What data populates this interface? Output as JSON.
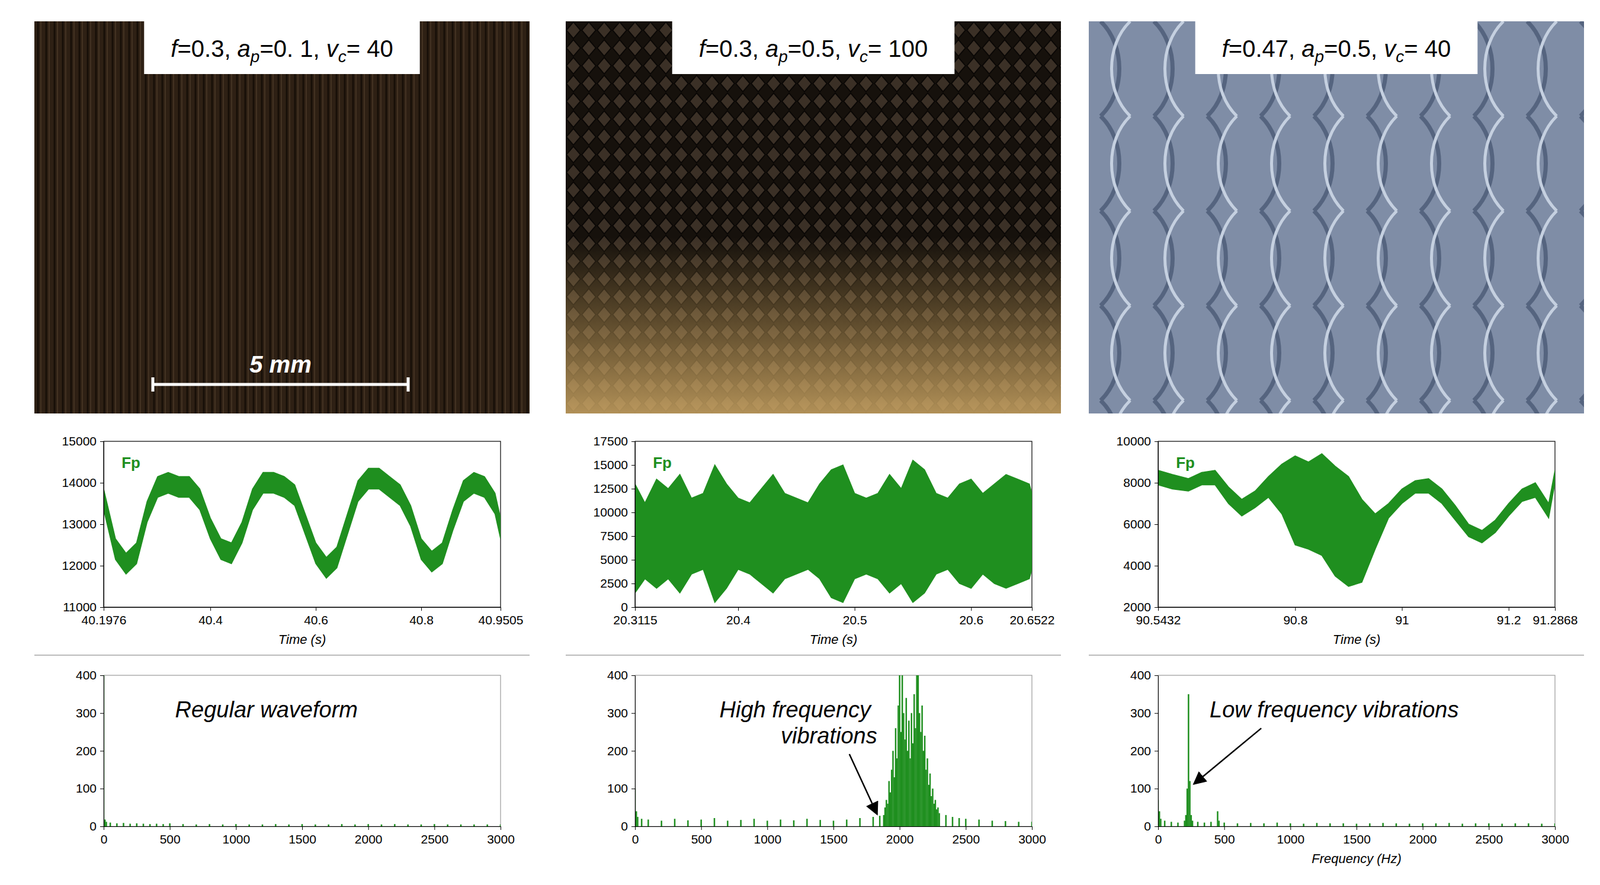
{
  "photos": [
    {
      "title": "f=0.3, ap=0. 1, vc= 40"
    },
    {
      "title": "f=0.3, ap=0.5, vc= 100"
    },
    {
      "title": "f=0.47, ap=0.5, vc= 40"
    }
  ],
  "scale_bar": "5 mm",
  "chart_data": [
    {
      "type": "area",
      "xlabel": "Time (s)",
      "x": [
        40.1976,
        40.22,
        40.24,
        40.26,
        40.28,
        40.3,
        40.32,
        40.34,
        40.36,
        40.38,
        40.4,
        40.42,
        40.44,
        40.46,
        40.48,
        40.5,
        40.52,
        40.54,
        40.56,
        40.58,
        40.6,
        40.62,
        40.64,
        40.66,
        40.68,
        40.7,
        40.72,
        40.74,
        40.76,
        40.78,
        40.8,
        40.82,
        40.84,
        40.86,
        40.88,
        40.9,
        40.92,
        40.94,
        40.9505
      ],
      "xlim": [
        40.1976,
        40.9505
      ],
      "xticks": [
        40.1976,
        40.4,
        40.6,
        40.8,
        40.9505
      ],
      "ylim": [
        11000,
        15000
      ],
      "yticks": [
        11000,
        12000,
        13000,
        14000,
        15000
      ],
      "legend": "top-left",
      "series": [
        {
          "name": "Fp",
          "color": "#1f8f1f",
          "low": [
            13350,
            12150,
            11800,
            12050,
            13050,
            13650,
            13750,
            13650,
            13650,
            13350,
            12650,
            12150,
            12050,
            12550,
            13350,
            13750,
            13750,
            13650,
            13450,
            12750,
            12050,
            11700,
            11950,
            12750,
            13550,
            13850,
            13850,
            13650,
            13450,
            12950,
            12150,
            11850,
            12050,
            12850,
            13550,
            13750,
            13650,
            13250,
            12650
          ],
          "high": [
            13850,
            12650,
            12300,
            12550,
            13550,
            14150,
            14250,
            14150,
            14150,
            13850,
            13150,
            12650,
            12550,
            13050,
            13850,
            14250,
            14250,
            14150,
            13950,
            13250,
            12550,
            12200,
            12450,
            13250,
            14050,
            14350,
            14350,
            14150,
            13950,
            13450,
            12650,
            12350,
            12550,
            13350,
            14050,
            14250,
            14150,
            13750,
            13150
          ]
        }
      ]
    },
    {
      "type": "area",
      "xlabel": "Time (s)",
      "x": [
        20.3115,
        20.32,
        20.33,
        20.34,
        20.35,
        20.36,
        20.37,
        20.38,
        20.39,
        20.4,
        20.41,
        20.42,
        20.43,
        20.44,
        20.45,
        20.46,
        20.47,
        20.48,
        20.49,
        20.5,
        20.51,
        20.52,
        20.53,
        20.54,
        20.55,
        20.56,
        20.57,
        20.58,
        20.59,
        20.6,
        20.61,
        20.62,
        20.63,
        20.64,
        20.65,
        20.6522
      ],
      "xlim": [
        20.3115,
        20.6522
      ],
      "xticks": [
        20.3115,
        20.4,
        20.5,
        20.6,
        20.6522
      ],
      "ylim": [
        0,
        17500
      ],
      "yticks": [
        0,
        2500,
        5000,
        7500,
        10000,
        12500,
        15000,
        17500
      ],
      "legend": "top-left",
      "series": [
        {
          "name": "Fp",
          "color": "#1f8f1f",
          "low": [
            1500,
            3000,
            2000,
            3000,
            1500,
            3500,
            4000,
            500,
            2000,
            4000,
            3500,
            2500,
            1500,
            3000,
            3500,
            4000,
            3000,
            1000,
            500,
            3000,
            3500,
            3000,
            1500,
            2500,
            500,
            1500,
            3500,
            4000,
            2500,
            2000,
            3500,
            2500,
            2000,
            2500,
            3000,
            4000
          ],
          "high": [
            13000,
            11000,
            13500,
            12500,
            14000,
            11500,
            12000,
            15000,
            13000,
            11500,
            11000,
            12500,
            14000,
            12000,
            11500,
            11000,
            13000,
            14500,
            15000,
            12000,
            11500,
            12000,
            14000,
            12500,
            15500,
            14500,
            12000,
            11500,
            13000,
            13500,
            12000,
            13000,
            14000,
            13500,
            13000,
            12000
          ]
        }
      ]
    },
    {
      "type": "area",
      "xlabel": "Time (s)",
      "x": [
        90.5432,
        90.57,
        90.6,
        90.625,
        90.65,
        90.675,
        90.7,
        90.725,
        90.75,
        90.775,
        90.8,
        90.825,
        90.85,
        90.875,
        90.9,
        90.925,
        90.95,
        90.975,
        91,
        91.025,
        91.05,
        91.075,
        91.1,
        91.125,
        91.15,
        91.175,
        91.2,
        91.225,
        91.25,
        91.275,
        91.2868
      ],
      "xlim": [
        90.5432,
        91.2868
      ],
      "xticks": [
        90.5432,
        90.8,
        91,
        91.2,
        91.2868
      ],
      "ylim": [
        2000,
        10000
      ],
      "yticks": [
        2000,
        4000,
        6000,
        8000,
        10000
      ],
      "legend": "top-left",
      "series": [
        {
          "name": "Fp",
          "color": "#1f8f1f",
          "low": [
            7900,
            7700,
            7600,
            7900,
            7900,
            7000,
            6400,
            6800,
            7300,
            6500,
            5000,
            4800,
            4500,
            3500,
            3000,
            3200,
            4800,
            6300,
            7000,
            7500,
            7500,
            7000,
            6200,
            5400,
            5100,
            5600,
            6400,
            7100,
            7300,
            6300,
            8000
          ],
          "high": [
            8600,
            8400,
            8200,
            8500,
            8600,
            7800,
            7200,
            7600,
            8300,
            8900,
            9300,
            9000,
            9400,
            8800,
            8300,
            7200,
            6500,
            7000,
            7700,
            8100,
            8200,
            7700,
            6900,
            6000,
            5700,
            6200,
            7000,
            7700,
            8000,
            7000,
            8600
          ]
        }
      ]
    },
    {
      "type": "stem",
      "annotation": "Regular waveform",
      "x": [
        0,
        10,
        20,
        50,
        100,
        150,
        200,
        250,
        300,
        350,
        400,
        450,
        500,
        600,
        700,
        800,
        900,
        1000,
        1100,
        1200,
        1300,
        1400,
        1500,
        1600,
        1700,
        1800,
        1900,
        2000,
        2100,
        2200,
        2300,
        2400,
        2500,
        2600,
        2700,
        2800,
        2900,
        3000
      ],
      "xlim": [
        0,
        3000
      ],
      "xticks": [
        0,
        500,
        1000,
        1500,
        2000,
        2500,
        3000
      ],
      "ylim": [
        0,
        400
      ],
      "yticks": [
        0,
        100,
        200,
        300,
        400
      ],
      "series": [
        {
          "color": "#1f8f1f",
          "values": [
            400,
            18,
            12,
            10,
            8,
            9,
            7,
            8,
            7,
            6,
            7,
            6,
            8,
            6,
            5,
            6,
            5,
            6,
            5,
            5,
            6,
            5,
            6,
            5,
            5,
            6,
            5,
            6,
            5,
            6,
            5,
            5,
            6,
            5,
            5,
            5,
            5,
            5
          ]
        }
      ]
    },
    {
      "type": "stem",
      "annotation": "High frequency vibrations",
      "x": [
        0,
        10,
        20,
        50,
        100,
        200,
        300,
        400,
        500,
        600,
        700,
        800,
        900,
        1000,
        1100,
        1200,
        1300,
        1400,
        1500,
        1600,
        1700,
        1800,
        1850,
        1880,
        1890,
        1900,
        1910,
        1920,
        1930,
        1940,
        1950,
        1960,
        1970,
        1980,
        1990,
        2000,
        2010,
        2020,
        2030,
        2040,
        2050,
        2060,
        2070,
        2080,
        2090,
        2100,
        2110,
        2120,
        2130,
        2140,
        2150,
        2160,
        2170,
        2180,
        2190,
        2200,
        2210,
        2220,
        2230,
        2240,
        2250,
        2260,
        2270,
        2280,
        2290,
        2300,
        2350,
        2400,
        2450,
        2500,
        2600,
        2700,
        2800,
        2900,
        3000
      ],
      "xlim": [
        0,
        3000
      ],
      "xticks": [
        0,
        500,
        1000,
        1500,
        2000,
        2500,
        3000
      ],
      "ylim": [
        0,
        400
      ],
      "yticks": [
        0,
        100,
        200,
        300,
        400
      ],
      "series": [
        {
          "color": "#1f8f1f",
          "values": [
            100,
            40,
            25,
            20,
            18,
            15,
            20,
            16,
            18,
            22,
            15,
            17,
            20,
            15,
            18,
            16,
            20,
            17,
            15,
            18,
            22,
            25,
            28,
            30,
            50,
            70,
            60,
            120,
            90,
            150,
            200,
            130,
            260,
            180,
            320,
            400,
            250,
            400,
            300,
            230,
            340,
            200,
            280,
            180,
            300,
            220,
            350,
            260,
            400,
            400,
            300,
            250,
            320,
            200,
            240,
            150,
            180,
            110,
            140,
            80,
            100,
            60,
            70,
            45,
            50,
            35,
            30,
            25,
            22,
            20,
            18,
            15,
            14,
            12,
            12
          ]
        }
      ]
    },
    {
      "type": "stem",
      "annotation": "Low frequency vibrations",
      "xlabel": "Frequency (Hz)",
      "x": [
        0,
        10,
        20,
        50,
        100,
        150,
        200,
        210,
        220,
        230,
        240,
        250,
        260,
        300,
        350,
        400,
        450,
        460,
        500,
        600,
        700,
        800,
        900,
        1000,
        1100,
        1200,
        1300,
        1400,
        1500,
        1600,
        1700,
        1800,
        1900,
        2000,
        2100,
        2200,
        2300,
        2400,
        2500,
        2600,
        2700,
        2800,
        2900,
        3000
      ],
      "xlim": [
        0,
        3000
      ],
      "xticks": [
        0,
        500,
        1000,
        1500,
        2000,
        2500,
        3000
      ],
      "ylim": [
        0,
        400
      ],
      "yticks": [
        0,
        100,
        200,
        300,
        400
      ],
      "series": [
        {
          "color": "#1f8f1f",
          "values": [
            70,
            40,
            20,
            15,
            12,
            10,
            15,
            30,
            100,
            350,
            120,
            30,
            15,
            12,
            10,
            12,
            40,
            15,
            10,
            8,
            9,
            8,
            10,
            8,
            7,
            9,
            8,
            8,
            7,
            8,
            9,
            8,
            7,
            8,
            8,
            9,
            7,
            8,
            8,
            7,
            8,
            8,
            7,
            8
          ]
        }
      ]
    }
  ]
}
